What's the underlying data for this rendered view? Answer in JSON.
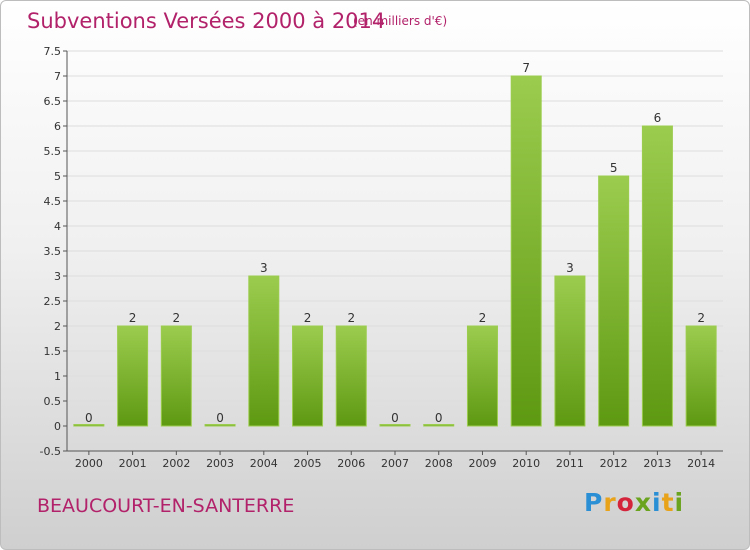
{
  "header": {
    "title": "Subventions Versées 2000 à 2014",
    "unit": "(en milliers d'€)"
  },
  "footer": {
    "commune": "BEAUCOURT-EN-SANTERRE",
    "logo_letters": [
      "P",
      "r",
      "o",
      "x",
      "i",
      "t",
      "i"
    ],
    "logo_colors": [
      "#2a8fd4",
      "#e8a31b",
      "#d4243c",
      "#6aa31e",
      "#2a8fd4",
      "#e8a31b",
      "#6aa31e"
    ]
  },
  "chart_data": {
    "type": "bar",
    "title": "Subventions Versées 2000 à 2014",
    "subtitle": "(en milliers d'€)",
    "categories": [
      "2000",
      "2001",
      "2002",
      "2003",
      "2004",
      "2005",
      "2006",
      "2007",
      "2008",
      "2009",
      "2010",
      "2011",
      "2012",
      "2013",
      "2014"
    ],
    "values": [
      0,
      2,
      2,
      0,
      3,
      2,
      2,
      0,
      0,
      2,
      7,
      3,
      5,
      6,
      2
    ],
    "value_labels": [
      "0",
      "2",
      "2",
      "0",
      "3",
      "2",
      "2",
      "0",
      "0",
      "2",
      "7",
      "3",
      "5",
      "6",
      "2"
    ],
    "ylim": [
      -0.5,
      7.5
    ],
    "yticks": [
      -0.5,
      0,
      0.5,
      1,
      1.5,
      2,
      2.5,
      3,
      3.5,
      4,
      4.5,
      5,
      5.5,
      6,
      6.5,
      7,
      7.5
    ],
    "ytick_labels": [
      "-0.5",
      "0",
      "0.5",
      "1",
      "1.5",
      "2",
      "2.5",
      "3",
      "3.5",
      "4",
      "4.5",
      "5",
      "5.5",
      "6",
      "6.5",
      "7",
      "7.5"
    ],
    "grid": true,
    "bar_color_light": "#9ccc4e",
    "bar_color_dark": "#5e9912",
    "grid_color": "#dddddd"
  }
}
